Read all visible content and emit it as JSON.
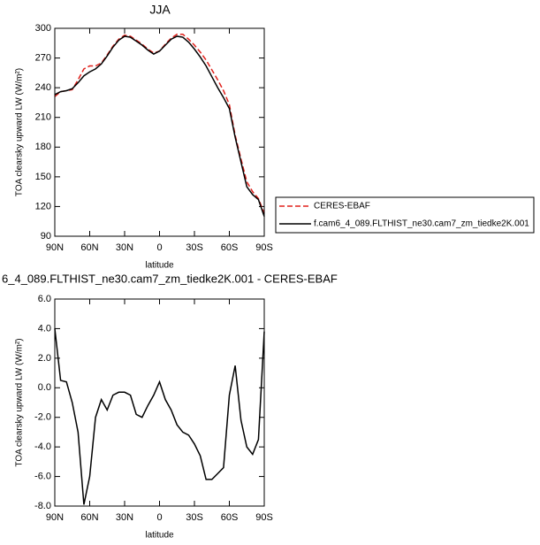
{
  "chart_data": [
    {
      "type": "line",
      "title": "JJA",
      "ylabel": "TOA clearsky upward LW (W/m²)",
      "xlabel": "latitude",
      "x": [
        90,
        85,
        80,
        75,
        70,
        65,
        60,
        55,
        50,
        45,
        40,
        35,
        30,
        25,
        20,
        15,
        10,
        5,
        0,
        -5,
        -10,
        -15,
        -20,
        -25,
        -30,
        -35,
        -40,
        -45,
        -50,
        -55,
        -60,
        -65,
        -70,
        -75,
        -80,
        -85,
        -90
      ],
      "series": [
        {
          "name": "CERES-EBAF",
          "color": "#e0201b",
          "dash": true,
          "values": [
            231,
            236,
            237,
            238,
            248,
            259,
            262,
            262,
            265,
            273,
            282,
            289,
            293,
            292,
            288,
            284,
            279,
            275,
            277,
            284,
            290,
            294,
            294,
            289,
            283,
            276,
            268,
            258,
            248,
            237,
            223,
            192,
            168,
            145,
            135,
            128,
            113
          ]
        },
        {
          "name": "f.cam6_4_089.FLTHIST_ne30.cam7_zm_tiedke2K.001",
          "color": "#000000",
          "dash": false,
          "values": [
            233,
            236,
            237,
            239,
            245,
            252,
            256,
            259,
            264,
            272,
            281,
            288,
            292,
            291,
            287,
            283,
            278,
            274,
            277,
            283,
            289,
            292,
            291,
            286,
            279,
            271,
            262,
            251,
            240,
            230,
            219,
            190,
            165,
            140,
            132,
            127,
            110
          ]
        }
      ],
      "xlim": [
        90,
        -90
      ],
      "xticks": [
        {
          "value": 90,
          "label": "90N"
        },
        {
          "value": 60,
          "label": "60N"
        },
        {
          "value": 30,
          "label": "30N"
        },
        0,
        {
          "value": -30,
          "label": "30S"
        },
        {
          "value": -60,
          "label": "60S"
        },
        {
          "value": -90,
          "label": "90S"
        }
      ],
      "ylim": [
        90,
        300
      ],
      "yticks": [
        90,
        120,
        150,
        180,
        210,
        240,
        270,
        300
      ],
      "legend": "outside-right"
    },
    {
      "type": "line",
      "title": "6_4_089.FLTHIST_ne30.cam7_zm_tiedke2K.001 - CERES-EBAF",
      "ylabel": "TOA clearsky upward LW (W/m²)",
      "xlabel": "latitude",
      "x": [
        90,
        85,
        80,
        75,
        70,
        65,
        60,
        55,
        50,
        45,
        40,
        35,
        30,
        25,
        20,
        15,
        10,
        5,
        0,
        -5,
        -10,
        -15,
        -20,
        -25,
        -30,
        -35,
        -40,
        -45,
        -50,
        -55,
        -60,
        -65,
        -70,
        -75,
        -80,
        -85,
        -90
      ],
      "values": [
        4.0,
        0.5,
        0.4,
        -1.0,
        -3.0,
        -7.9,
        -6.0,
        -2.0,
        -0.8,
        -1.5,
        -0.5,
        -0.3,
        -0.3,
        -0.5,
        -1.8,
        -2.0,
        -1.2,
        -0.5,
        0.4,
        -0.8,
        -1.5,
        -2.5,
        -3.0,
        -3.2,
        -3.8,
        -4.6,
        -6.2,
        -6.2,
        -5.8,
        -5.4,
        -0.5,
        1.5,
        -2.2,
        -4.0,
        -4.5,
        -3.5,
        3.8
      ],
      "color": "#000000",
      "xlim": [
        90,
        -90
      ],
      "xticks": [
        {
          "value": 90,
          "label": "90N"
        },
        {
          "value": 60,
          "label": "60N"
        },
        {
          "value": 30,
          "label": "30N"
        },
        0,
        {
          "value": -30,
          "label": "30S"
        },
        {
          "value": -60,
          "label": "60S"
        },
        {
          "value": -90,
          "label": "90S"
        }
      ],
      "ylim": [
        -8,
        6
      ],
      "yticks": [
        {
          "value": -8,
          "label": "-8.0"
        },
        {
          "value": -6,
          "label": "-6.0"
        },
        {
          "value": -4,
          "label": "-4.0"
        },
        {
          "value": -2,
          "label": "-2.0"
        },
        {
          "value": 0,
          "label": "0.0"
        },
        {
          "value": 2,
          "label": "2.0"
        },
        {
          "value": 4,
          "label": "4.0"
        },
        {
          "value": 6,
          "label": "6.0"
        }
      ]
    }
  ]
}
